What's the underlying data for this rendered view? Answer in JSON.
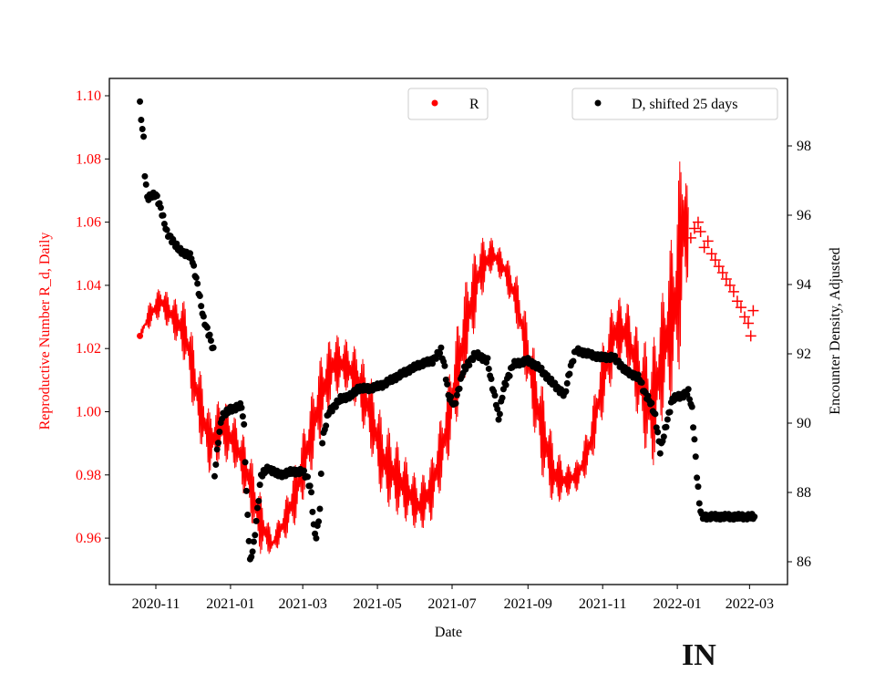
{
  "chart_data": {
    "type": "scatter",
    "title": "",
    "xlabel": "Date",
    "ylabel_left": "Reproductive Number R_d, Daily",
    "ylabel_right": "Encounter Density, Adjusted",
    "xticks": [
      "2020-11",
      "2021-01",
      "2021-03",
      "2021-05",
      "2021-07",
      "2021-09",
      "2021-11",
      "2022-01",
      "2022-03"
    ],
    "yticks_left": [
      "0.96",
      "0.98",
      "1.00",
      "1.02",
      "1.04",
      "1.06",
      "1.08",
      "1.10"
    ],
    "yticks_right": [
      "86",
      "88",
      "90",
      "92",
      "94",
      "96",
      "98"
    ],
    "ylim_left": [
      0.949,
      1.106
    ],
    "ylim_right": [
      85.6,
      99.9
    ],
    "colors": {
      "R": "#ff0000",
      "D": "#000000",
      "left_axis_text": "#ff0000"
    },
    "legend": [
      {
        "label": "R",
        "placement": "top-center"
      },
      {
        "label": "D, shifted 25 days",
        "placement": "top-right"
      }
    ],
    "series": [
      {
        "name": "R",
        "axis": "left",
        "note": "daily values oscillating weekly around a mid value; points are [date, mid, half-range]",
        "points": [
          [
            "2020-10-19",
            1.024,
            0.001
          ],
          [
            "2020-10-26",
            1.03,
            0.004
          ],
          [
            "2020-11-05",
            1.035,
            0.005
          ],
          [
            "2020-11-15",
            1.03,
            0.006
          ],
          [
            "2020-11-25",
            1.025,
            0.01
          ],
          [
            "2020-12-05",
            1.005,
            0.012
          ],
          [
            "2020-12-15",
            0.99,
            0.01
          ],
          [
            "2020-12-25",
            0.995,
            0.01
          ],
          [
            "2021-01-05",
            0.99,
            0.008
          ],
          [
            "2021-01-15",
            0.98,
            0.01
          ],
          [
            "2021-01-25",
            0.965,
            0.01
          ],
          [
            "2021-02-04",
            0.958,
            0.003
          ],
          [
            "2021-02-14",
            0.965,
            0.006
          ],
          [
            "2021-02-24",
            0.975,
            0.01
          ],
          [
            "2021-03-06",
            0.99,
            0.012
          ],
          [
            "2021-03-16",
            1.005,
            0.013
          ],
          [
            "2021-03-26",
            1.015,
            0.01
          ],
          [
            "2021-04-05",
            1.015,
            0.008
          ],
          [
            "2021-04-15",
            1.01,
            0.01
          ],
          [
            "2021-04-25",
            1.0,
            0.012
          ],
          [
            "2021-05-05",
            0.985,
            0.013
          ],
          [
            "2021-05-15",
            0.98,
            0.012
          ],
          [
            "2021-05-25",
            0.975,
            0.01
          ],
          [
            "2021-06-04",
            0.97,
            0.008
          ],
          [
            "2021-06-14",
            0.975,
            0.01
          ],
          [
            "2021-06-24",
            0.99,
            0.012
          ],
          [
            "2021-07-04",
            1.01,
            0.015
          ],
          [
            "2021-07-14",
            1.03,
            0.015
          ],
          [
            "2021-07-24",
            1.045,
            0.01
          ],
          [
            "2021-08-03",
            1.05,
            0.005
          ],
          [
            "2021-08-13",
            1.045,
            0.005
          ],
          [
            "2021-08-23",
            1.035,
            0.008
          ],
          [
            "2021-09-02",
            1.015,
            0.012
          ],
          [
            "2021-09-12",
            0.995,
            0.015
          ],
          [
            "2021-09-22",
            0.98,
            0.01
          ],
          [
            "2021-10-02",
            0.978,
            0.005
          ],
          [
            "2021-10-12",
            0.98,
            0.005
          ],
          [
            "2021-10-22",
            0.99,
            0.008
          ],
          [
            "2021-11-01",
            1.01,
            0.012
          ],
          [
            "2021-11-11",
            1.025,
            0.012
          ],
          [
            "2021-11-21",
            1.025,
            0.01
          ],
          [
            "2021-12-01",
            1.01,
            0.015
          ],
          [
            "2021-12-11",
            1.0,
            0.02
          ],
          [
            "2021-12-21",
            1.02,
            0.02
          ],
          [
            "2021-12-31",
            1.035,
            0.03
          ],
          [
            "2022-01-06",
            1.06,
            0.035
          ],
          [
            "2022-01-10",
            1.055,
            0.01
          ]
        ],
        "plus_points": [
          [
            "2022-01-12",
            1.055
          ],
          [
            "2022-01-15",
            1.058
          ],
          [
            "2022-01-18",
            1.06
          ],
          [
            "2022-01-20",
            1.057
          ],
          [
            "2022-01-23",
            1.052
          ],
          [
            "2022-01-26",
            1.054
          ],
          [
            "2022-01-29",
            1.05
          ],
          [
            "2022-02-01",
            1.048
          ],
          [
            "2022-02-04",
            1.046
          ],
          [
            "2022-02-07",
            1.044
          ],
          [
            "2022-02-10",
            1.042
          ],
          [
            "2022-02-13",
            1.04
          ],
          [
            "2022-02-16",
            1.038
          ],
          [
            "2022-02-19",
            1.035
          ],
          [
            "2022-02-22",
            1.033
          ],
          [
            "2022-02-25",
            1.03
          ],
          [
            "2022-02-28",
            1.028
          ],
          [
            "2022-03-02",
            1.024
          ],
          [
            "2022-03-04",
            1.032
          ]
        ]
      },
      {
        "name": "D, shifted 25 days",
        "axis": "right",
        "points": [
          [
            "2020-10-19",
            99.2
          ],
          [
            "2020-10-20",
            98.8
          ],
          [
            "2020-10-22",
            98.2
          ],
          [
            "2020-10-23",
            97.2
          ],
          [
            "2020-10-25",
            96.5
          ],
          [
            "2020-11-01",
            96.6
          ],
          [
            "2020-11-05",
            96.2
          ],
          [
            "2020-11-10",
            95.5
          ],
          [
            "2020-11-20",
            95.0
          ],
          [
            "2020-11-30",
            94.8
          ],
          [
            "2020-12-05",
            94.0
          ],
          [
            "2020-12-10",
            93.0
          ],
          [
            "2020-12-15",
            92.5
          ],
          [
            "2020-12-18",
            92.1
          ],
          [
            "2020-12-19",
            88.5
          ],
          [
            "2020-12-22",
            89.5
          ],
          [
            "2020-12-25",
            90.2
          ],
          [
            "2021-01-01",
            90.4
          ],
          [
            "2021-01-10",
            90.5
          ],
          [
            "2021-01-12",
            89.9
          ],
          [
            "2021-01-14",
            88.0
          ],
          [
            "2021-01-17",
            86.0
          ],
          [
            "2021-01-20",
            86.5
          ],
          [
            "2021-01-23",
            87.5
          ],
          [
            "2021-01-26",
            88.5
          ],
          [
            "2021-02-01",
            88.7
          ],
          [
            "2021-02-10",
            88.5
          ],
          [
            "2021-02-20",
            88.6
          ],
          [
            "2021-03-01",
            88.6
          ],
          [
            "2021-03-05",
            88.4
          ],
          [
            "2021-03-08",
            88.0
          ],
          [
            "2021-03-10",
            87.0
          ],
          [
            "2021-03-12",
            86.7
          ],
          [
            "2021-03-15",
            87.5
          ],
          [
            "2021-03-17",
            89.5
          ],
          [
            "2021-03-22",
            90.3
          ],
          [
            "2021-04-01",
            90.7
          ],
          [
            "2021-04-10",
            90.8
          ],
          [
            "2021-04-15",
            91.0
          ],
          [
            "2021-04-25",
            91.0
          ],
          [
            "2021-05-05",
            91.1
          ],
          [
            "2021-05-15",
            91.3
          ],
          [
            "2021-05-25",
            91.5
          ],
          [
            "2021-06-05",
            91.7
          ],
          [
            "2021-06-15",
            91.8
          ],
          [
            "2021-06-22",
            92.1
          ],
          [
            "2021-06-25",
            91.6
          ],
          [
            "2021-06-28",
            90.8
          ],
          [
            "2021-07-03",
            90.5
          ],
          [
            "2021-07-10",
            91.5
          ],
          [
            "2021-07-20",
            92.0
          ],
          [
            "2021-07-30",
            91.8
          ],
          [
            "2021-08-02",
            91.2
          ],
          [
            "2021-08-06",
            90.6
          ],
          [
            "2021-08-08",
            90.1
          ],
          [
            "2021-08-12",
            91.0
          ],
          [
            "2021-08-20",
            91.7
          ],
          [
            "2021-09-01",
            91.8
          ],
          [
            "2021-09-10",
            91.6
          ],
          [
            "2021-09-20",
            91.2
          ],
          [
            "2021-10-01",
            90.8
          ],
          [
            "2021-10-05",
            91.5
          ],
          [
            "2021-10-10",
            92.1
          ],
          [
            "2021-10-20",
            92.0
          ],
          [
            "2021-10-30",
            91.9
          ],
          [
            "2021-11-10",
            91.9
          ],
          [
            "2021-11-20",
            91.5
          ],
          [
            "2021-12-01",
            91.3
          ],
          [
            "2021-12-05",
            90.9
          ],
          [
            "2021-12-10",
            90.6
          ],
          [
            "2021-12-14",
            90.2
          ],
          [
            "2021-12-18",
            89.2
          ],
          [
            "2021-12-22",
            89.8
          ],
          [
            "2021-12-28",
            90.7
          ],
          [
            "2022-01-05",
            90.8
          ],
          [
            "2022-01-10",
            90.9
          ],
          [
            "2022-01-13",
            90.4
          ],
          [
            "2022-01-15",
            89.5
          ],
          [
            "2022-01-17",
            88.5
          ],
          [
            "2022-01-19",
            87.7
          ],
          [
            "2022-01-21",
            87.3
          ],
          [
            "2022-03-05",
            87.3
          ]
        ]
      }
    ]
  },
  "watermark": "IN"
}
